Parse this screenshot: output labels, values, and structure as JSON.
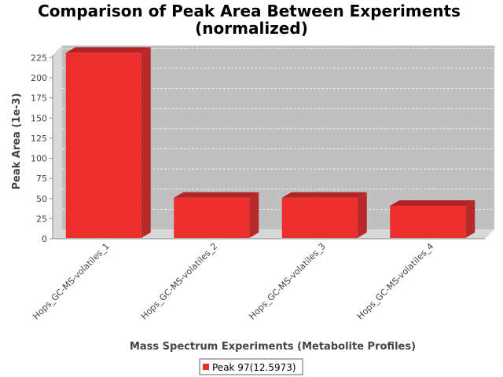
{
  "chart_data": {
    "type": "bar",
    "title": "Comparison of Peak Area Between Experiments",
    "subtitle": "(normalized)",
    "xlabel": "Mass Spectrum Experiments (Metabolite Profiles)",
    "ylabel": "Peak Area (1e-3)",
    "ylim": [
      0,
      240
    ],
    "yticks": [
      0,
      25,
      50,
      75,
      100,
      125,
      150,
      175,
      200,
      225
    ],
    "grid": true,
    "legend_position": "bottom",
    "categories": [
      "Hops_GC-MS-volatiles_1",
      "Hops_GC-MS-volatiles_2",
      "Hops_GC-MS-volatiles_3",
      "Hops_GC-MS-volatiles_4"
    ],
    "series": [
      {
        "name": "Peak 97(12.5973)",
        "values": [
          228,
          48,
          48,
          38
        ],
        "color": "#ee2d2d"
      }
    ],
    "colors": {
      "plot_background": "#c0c0c0",
      "wall": "#d8d8d8",
      "bar_front": "#ee2d2d",
      "bar_top": "#b22424",
      "bar_side": "#b82a2a"
    }
  }
}
